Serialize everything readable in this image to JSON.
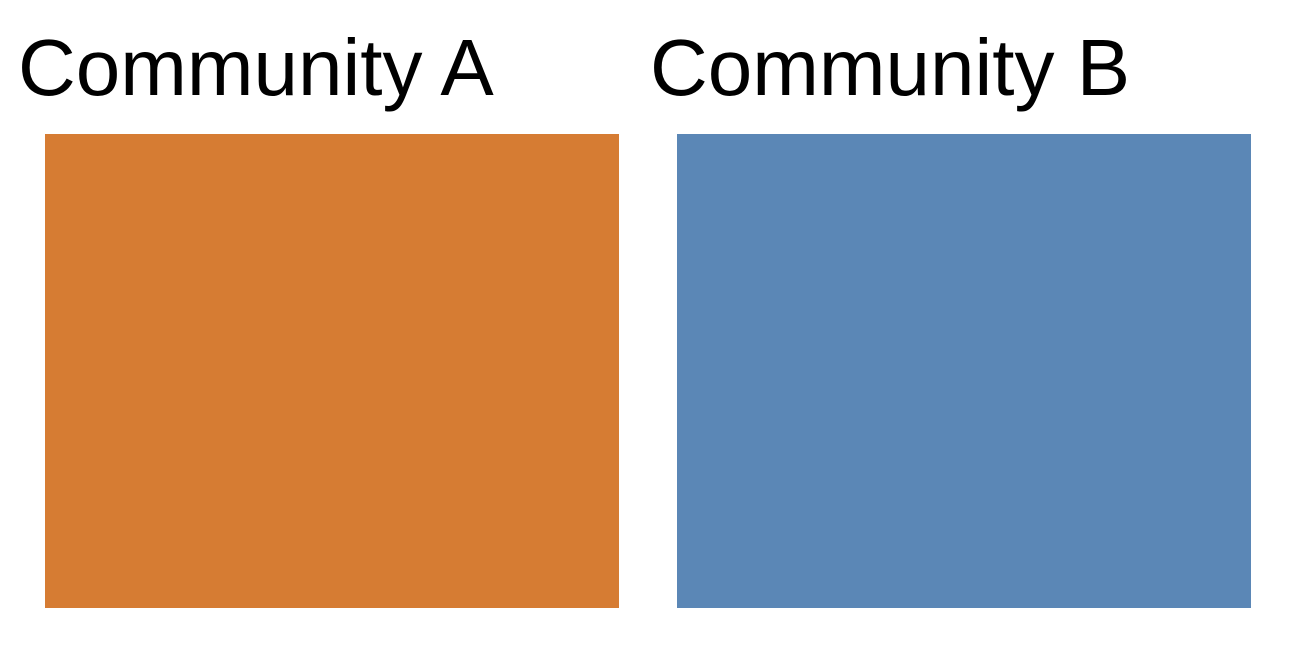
{
  "communities": [
    {
      "label": "Community A",
      "color": "#d67c33"
    },
    {
      "label": "Community B",
      "color": "#5b87b6"
    }
  ]
}
